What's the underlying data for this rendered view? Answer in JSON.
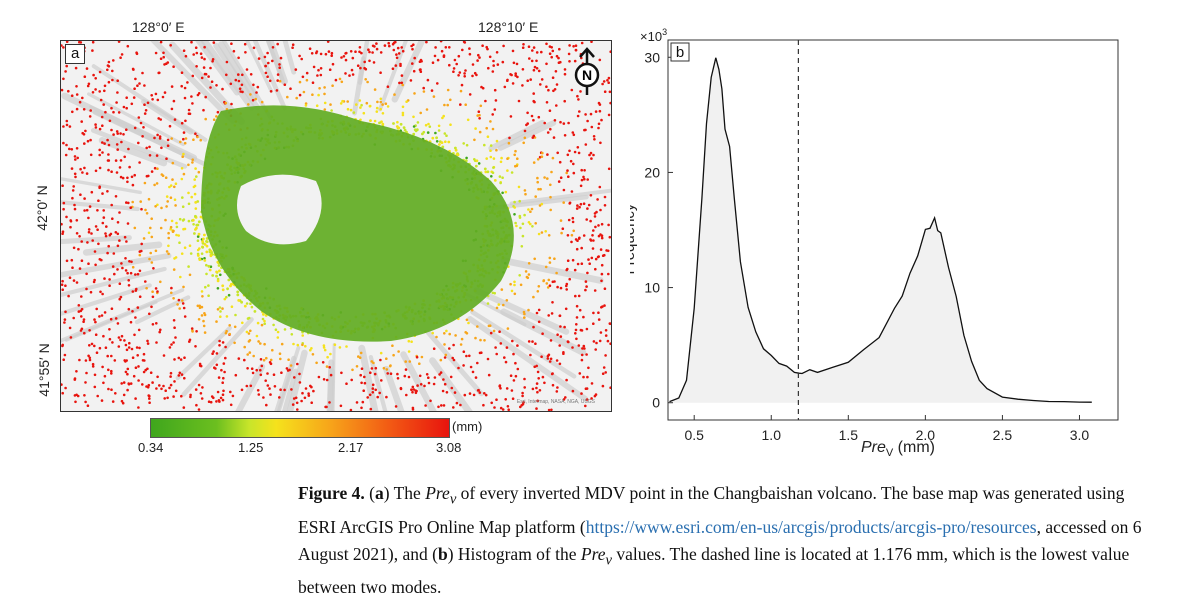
{
  "panel_a": {
    "label": "a",
    "top_coords": [
      "128°0′ E",
      "128°10′ E"
    ],
    "left_coords": [
      "42°0′ N",
      "41°55′ N"
    ],
    "north_arrow": "N",
    "colorbar": {
      "ticks": [
        "0.34",
        "1.25",
        "2.17",
        "3.08"
      ],
      "unit": "(mm)",
      "colors": [
        "#3fa61d",
        "#c8e52a",
        "#f5e21c",
        "#f7a51a",
        "#e8140e"
      ]
    },
    "credit": "Esri, Intermap, NASA, NGA, USGS"
  },
  "panel_b": {
    "label": "b",
    "exponent": "×10",
    "exponent_power": "3",
    "ylabel": "Frequency",
    "xlabel_main": "Pre",
    "xlabel_sub": "V",
    "xlabel_unit": " (mm)"
  },
  "chart_data": {
    "type": "area",
    "title": "",
    "xlabel": "Pre_V (mm)",
    "ylabel": "Frequency (×10^3)",
    "xlim": [
      0.33,
      3.25
    ],
    "ylim": [
      -1.5,
      31.5
    ],
    "xticks": [
      "0.5",
      "1.0",
      "1.5",
      "2.0",
      "2.5",
      "3.0"
    ],
    "xtick_values": [
      0.5,
      1.0,
      1.5,
      2.0,
      2.5,
      3.0
    ],
    "yticks": [
      "0",
      "10",
      "20",
      "30"
    ],
    "ytick_values": [
      0,
      10,
      20,
      30
    ],
    "dashed_line_x": 1.176,
    "series": [
      {
        "name": "Pre_V histogram",
        "x": [
          0.34,
          0.4,
          0.45,
          0.5,
          0.55,
          0.58,
          0.61,
          0.64,
          0.66,
          0.68,
          0.7,
          0.73,
          0.76,
          0.8,
          0.85,
          0.9,
          0.95,
          1.0,
          1.05,
          1.1,
          1.15,
          1.18,
          1.2,
          1.25,
          1.3,
          1.4,
          1.5,
          1.6,
          1.7,
          1.8,
          1.85,
          1.9,
          1.95,
          2.0,
          2.03,
          2.06,
          2.08,
          2.1,
          2.15,
          2.2,
          2.25,
          2.3,
          2.35,
          2.4,
          2.5,
          2.6,
          2.7,
          2.8,
          2.9,
          3.0,
          3.08
        ],
        "values": [
          0.1,
          0.4,
          2.0,
          8.0,
          18.0,
          24.0,
          28.5,
          29.7,
          29.2,
          27.0,
          24.0,
          22.0,
          18.0,
          12.0,
          8.5,
          6.0,
          4.8,
          4.0,
          3.5,
          3.1,
          2.7,
          2.5,
          2.6,
          2.8,
          2.7,
          3.0,
          3.6,
          4.5,
          5.8,
          8.0,
          9.5,
          11.0,
          13.0,
          14.8,
          15.4,
          15.8,
          15.2,
          14.5,
          12.0,
          9.0,
          6.0,
          3.5,
          2.0,
          1.2,
          0.5,
          0.3,
          0.2,
          0.1,
          0.1,
          0.05,
          0.05
        ]
      }
    ]
  },
  "caption": {
    "figure_label": "Figure 4.",
    "open_paren_a": " (",
    "a": "a",
    "text1": ") The ",
    "pre": "Pre",
    "sub_v": "v",
    "text2": " of every inverted MDV point in the Changbaishan volcano. The base map was generated using ESRI ArcGIS Pro Online Map platform (",
    "link": "https://www.esri.com/en-us/arcgis/products/arcgis-pro/resources",
    "text3": ", accessed on 6 August 2021), and (",
    "b": "b",
    "text4": ") Histogram of the ",
    "text5": " values. The dashed line is located at 1.176 mm, which is the lowest value between two modes."
  }
}
